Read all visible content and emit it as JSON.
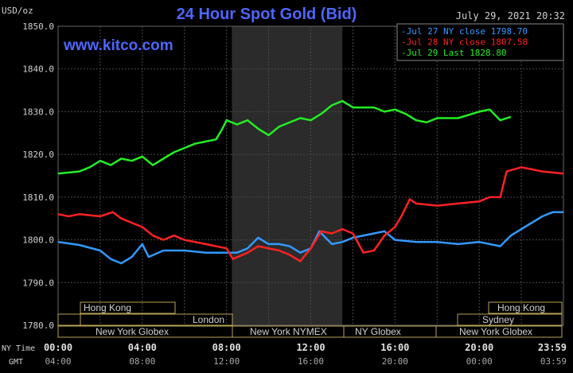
{
  "header": {
    "unit": "USD/oz",
    "title": "24 Hour Spot Gold (Bid)",
    "datetime": "July 29, 2021 20:32",
    "watermark": "www.kitco.com"
  },
  "legend": [
    {
      "label": "Jul 27 NY close 1798.70",
      "color": "#3399ff"
    },
    {
      "label": "Jul 28 NY close 1807.58",
      "color": "#ff2222"
    },
    {
      "label": "Jul 29 Last 1828.80",
      "color": "#22ee22"
    }
  ],
  "axis": {
    "ny_time_label": "NY Time",
    "gmt_label": "GMT",
    "ny_ticks": [
      "00:00",
      "04:00",
      "08:00",
      "12:00",
      "16:00",
      "20:00",
      "23:59"
    ],
    "gmt_ticks": [
      "04:00",
      "08:00",
      "12:00",
      "16:00",
      "20:00",
      "00:00",
      "03:59"
    ],
    "y_ticks": [
      "1850.0",
      "1840.0",
      "1830.0",
      "1820.0",
      "1810.0",
      "1800.0",
      "1790.0",
      "1780.0"
    ]
  },
  "sessions": {
    "row1": [
      "Hong Kong",
      "Hong Kong"
    ],
    "row2": [
      "London",
      "Sydney"
    ],
    "row3": [
      "New York Globex",
      "New York NYMEX",
      "NY Globex",
      "New York Globex"
    ]
  },
  "colors": {
    "background": "#000000",
    "grid": "#4a4a4a",
    "shade": "#2b2b2b",
    "title": "#4d66ff",
    "session_border": "#b8a25a",
    "text": "#cfcfcf"
  },
  "chart_data": {
    "type": "line",
    "x_unit": "hours (NY Time)",
    "xlim": [
      0,
      24
    ],
    "ylim": [
      1780,
      1850
    ],
    "grid": true,
    "legend_position": "top-right",
    "shaded_range_hours": [
      8.25,
      13.5
    ],
    "series": [
      {
        "name": "Jul 27 NY close 1798.70",
        "color": "#3399ff",
        "points": [
          [
            0,
            1799.5
          ],
          [
            1,
            1798.8
          ],
          [
            2,
            1797.5
          ],
          [
            2.5,
            1795.5
          ],
          [
            3,
            1794.5
          ],
          [
            3.5,
            1796
          ],
          [
            4,
            1799
          ],
          [
            4.3,
            1796
          ],
          [
            5,
            1797.5
          ],
          [
            6,
            1797.5
          ],
          [
            7,
            1797
          ],
          [
            8,
            1797
          ],
          [
            8.5,
            1797
          ],
          [
            9,
            1798
          ],
          [
            9.5,
            1800.5
          ],
          [
            10,
            1799
          ],
          [
            10.5,
            1799
          ],
          [
            11,
            1798.5
          ],
          [
            11.5,
            1797
          ],
          [
            12,
            1798
          ],
          [
            12.4,
            1802
          ],
          [
            13,
            1799
          ],
          [
            13.5,
            1799.5
          ],
          [
            14,
            1800.5
          ],
          [
            15,
            1801.5
          ],
          [
            15.5,
            1802
          ],
          [
            16,
            1800
          ],
          [
            17,
            1799.5
          ],
          [
            18,
            1799.5
          ],
          [
            19,
            1799
          ],
          [
            20,
            1799.5
          ],
          [
            20.5,
            1799
          ],
          [
            21,
            1798.5
          ],
          [
            21.5,
            1801
          ],
          [
            22,
            1802.5
          ],
          [
            23,
            1805.5
          ],
          [
            23.5,
            1806.5
          ],
          [
            24,
            1806.5
          ]
        ]
      },
      {
        "name": "Jul 28 NY close 1807.58",
        "color": "#ff2222",
        "points": [
          [
            0,
            1806
          ],
          [
            0.5,
            1805.5
          ],
          [
            1,
            1806
          ],
          [
            2,
            1805.5
          ],
          [
            2.6,
            1806.5
          ],
          [
            3,
            1805
          ],
          [
            4,
            1803
          ],
          [
            4.5,
            1801
          ],
          [
            5,
            1800
          ],
          [
            5.5,
            1801
          ],
          [
            6,
            1800
          ],
          [
            7,
            1799
          ],
          [
            8,
            1798
          ],
          [
            8.3,
            1795.5
          ],
          [
            9,
            1797
          ],
          [
            9.5,
            1798.5
          ],
          [
            10,
            1798
          ],
          [
            10.5,
            1797.5
          ],
          [
            11,
            1796.5
          ],
          [
            11.5,
            1795
          ],
          [
            12,
            1798
          ],
          [
            12.5,
            1802
          ],
          [
            13,
            1801.5
          ],
          [
            13.5,
            1802.5
          ],
          [
            14,
            1801.5
          ],
          [
            14.5,
            1797
          ],
          [
            15,
            1797.5
          ],
          [
            15.5,
            1801
          ],
          [
            16,
            1803
          ],
          [
            16.3,
            1805.5
          ],
          [
            16.7,
            1809.5
          ],
          [
            17,
            1808.5
          ],
          [
            18,
            1808
          ],
          [
            19,
            1808.5
          ],
          [
            20,
            1809
          ],
          [
            20.5,
            1810
          ],
          [
            21,
            1810
          ],
          [
            21.3,
            1816
          ],
          [
            22,
            1817
          ],
          [
            22.5,
            1816.5
          ],
          [
            23,
            1816
          ],
          [
            24,
            1815.5
          ]
        ]
      },
      {
        "name": "Jul 29 Last 1828.80",
        "color": "#22ee22",
        "points": [
          [
            0,
            1815.5
          ],
          [
            1,
            1816
          ],
          [
            1.5,
            1817
          ],
          [
            2,
            1818.5
          ],
          [
            2.5,
            1817.5
          ],
          [
            3,
            1819
          ],
          [
            3.5,
            1818.5
          ],
          [
            4,
            1819.5
          ],
          [
            4.5,
            1817.5
          ],
          [
            5,
            1819
          ],
          [
            5.5,
            1820.5
          ],
          [
            6,
            1821.5
          ],
          [
            6.5,
            1822.5
          ],
          [
            7,
            1823
          ],
          [
            7.5,
            1823.5
          ],
          [
            7.8,
            1826
          ],
          [
            8,
            1828
          ],
          [
            8.5,
            1827
          ],
          [
            9,
            1828
          ],
          [
            9.5,
            1826
          ],
          [
            10,
            1824.5
          ],
          [
            10.5,
            1826.5
          ],
          [
            11,
            1827.5
          ],
          [
            11.5,
            1828.5
          ],
          [
            12,
            1828
          ],
          [
            12.5,
            1829.5
          ],
          [
            13,
            1831.5
          ],
          [
            13.5,
            1832.5
          ],
          [
            14,
            1831
          ],
          [
            15,
            1831
          ],
          [
            15.5,
            1830
          ],
          [
            16,
            1830.5
          ],
          [
            16.5,
            1829.5
          ],
          [
            17,
            1828
          ],
          [
            17.5,
            1827.5
          ],
          [
            18,
            1828.5
          ],
          [
            19,
            1828.5
          ],
          [
            20,
            1830
          ],
          [
            20.5,
            1830.5
          ],
          [
            21,
            1828
          ],
          [
            21.5,
            1828.8
          ]
        ]
      }
    ]
  }
}
